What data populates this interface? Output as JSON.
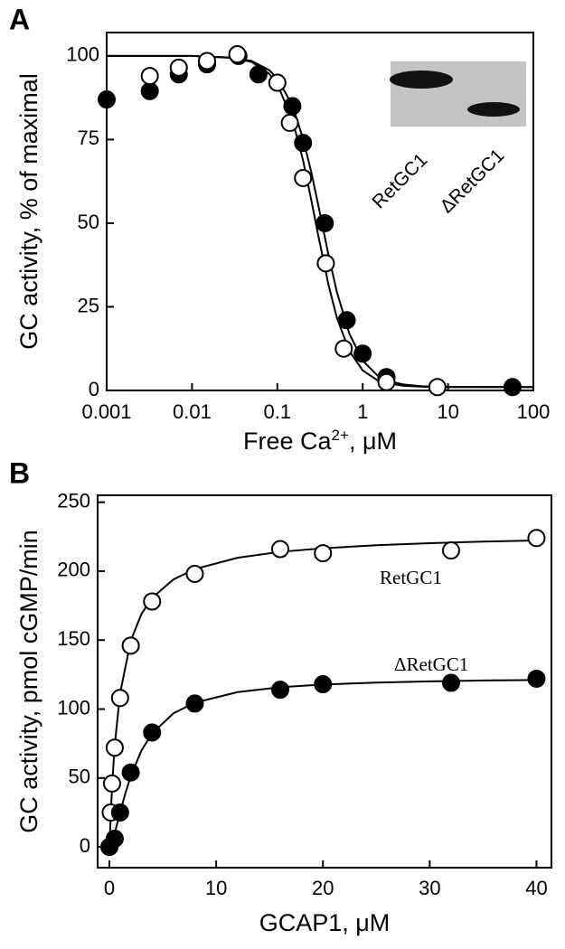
{
  "chart_data": [
    {
      "type": "scatter",
      "panel": "A",
      "xscale": "log",
      "xlabel": [
        "Free Ca",
        "2+",
        ", μM"
      ],
      "ylabel": "GC activity, % of maximal",
      "xlim": [
        0.001,
        100
      ],
      "xticks": [
        0.001,
        0.01,
        0.1,
        1,
        10,
        100
      ],
      "ylim": [
        0,
        107
      ],
      "yticks": [
        0,
        25,
        50,
        75,
        100
      ],
      "annotations": [
        "RetGC1",
        "ΔRetGC1"
      ],
      "series": [
        {
          "marker": "filled",
          "color": "#000000",
          "x": [
            0.001,
            0.0032,
            0.007,
            0.015,
            0.035,
            0.06,
            0.15,
            0.2,
            0.36,
            0.65,
            1.0,
            1.9,
            57
          ],
          "values": [
            87,
            89.5,
            94.5,
            97.5,
            100,
            94.5,
            85,
            74,
            50,
            21,
            11,
            4,
            1
          ]
        },
        {
          "marker": "open",
          "color": "#000000",
          "x": [
            0.0032,
            0.007,
            0.015,
            0.034,
            0.1,
            0.14,
            0.2,
            0.37,
            0.6,
            1.9,
            7.5
          ],
          "values": [
            94,
            96.5,
            98.5,
            100.5,
            92,
            80,
            63.5,
            38,
            12.5,
            2.5,
            1
          ]
        }
      ],
      "curves": [
        {
          "color": "#000000",
          "x": [
            0.001,
            0.01,
            0.03,
            0.05,
            0.08,
            0.1,
            0.15,
            0.2,
            0.25,
            0.3,
            0.4,
            0.5,
            0.7,
            1,
            1.5,
            2,
            3,
            5,
            10,
            100
          ],
          "values": [
            100,
            100,
            99.5,
            98.5,
            95.8,
            93.3,
            85.2,
            75.3,
            65.2,
            55.7,
            40.2,
            29.3,
            16.9,
            8.9,
            4.4,
            2.8,
            1.8,
            1.25,
            1.05,
            1.0
          ]
        },
        {
          "color": "#000000",
          "x": [
            0.001,
            0.01,
            0.03,
            0.05,
            0.08,
            0.1,
            0.15,
            0.2,
            0.25,
            0.3,
            0.4,
            0.5,
            0.7,
            1,
            1.5,
            2,
            3,
            5,
            10,
            100
          ],
          "values": [
            100,
            100,
            99.4,
            98.2,
            94.7,
            91.5,
            81.0,
            68.8,
            56.9,
            46.6,
            31.3,
            21.6,
            11.7,
            6.0,
            3.0,
            2.1,
            1.4,
            1.1,
            1.0,
            1.0
          ]
        }
      ]
    },
    {
      "type": "scatter",
      "panel": "B",
      "xscale": "linear",
      "xlabel": [
        "GCAP1, μM"
      ],
      "ylabel": "GC activity, pmol cGMP/min",
      "xlim": [
        -1.1,
        41.4
      ],
      "xticks": [
        0,
        10,
        20,
        30,
        40
      ],
      "ylim": [
        -15,
        255
      ],
      "yticks": [
        0,
        50,
        100,
        150,
        200,
        250
      ],
      "series": [
        {
          "name": "RetGC1",
          "marker": "open",
          "color": "#000000",
          "x": [
            0.125,
            0.25,
            0.5,
            1,
            2,
            4,
            8,
            16,
            20,
            32,
            40
          ],
          "values": [
            25,
            46,
            72,
            108,
            146,
            178,
            198,
            216,
            213,
            215,
            224
          ]
        },
        {
          "name": "ΔRetGC1",
          "marker": "filled",
          "color": "#000000",
          "x": [
            0,
            0.5,
            1,
            2,
            4,
            8,
            16,
            20,
            32,
            40
          ],
          "values": [
            0,
            6,
            25,
            54,
            83,
            104,
            114,
            118,
            119,
            122
          ]
        }
      ],
      "curves": [
        {
          "color": "#000000",
          "x": [
            0,
            0.25,
            0.5,
            1,
            2,
            3,
            4,
            6,
            8,
            12,
            16,
            20,
            25,
            30,
            35,
            40
          ],
          "values": [
            0,
            43.8,
            73.5,
            111.2,
            149.5,
            168.9,
            180.6,
            194.0,
            201.5,
            209.7,
            214.0,
            216.6,
            218.8,
            220.3,
            221.4,
            222.2
          ]
        },
        {
          "color": "#000000",
          "x": [
            0,
            0.5,
            1,
            1.5,
            2,
            3,
            4,
            6,
            8,
            12,
            16,
            20,
            25,
            30,
            35,
            40
          ],
          "values": [
            0,
            10.1,
            24.8,
            39.0,
            51.3,
            69.9,
            82.3,
            96.9,
            104.6,
            112.3,
            115.8,
            117.8,
            119.2,
            120.1,
            120.7,
            121.1
          ]
        }
      ]
    }
  ]
}
